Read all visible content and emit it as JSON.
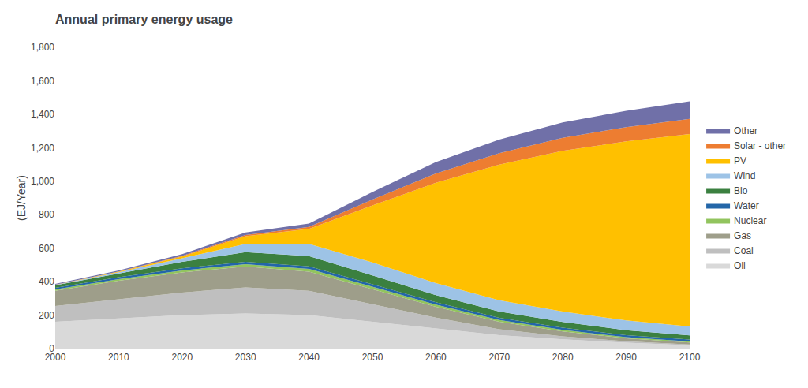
{
  "chart_data": {
    "type": "area",
    "stacked": true,
    "title": "Annual primary energy usage",
    "ylabel": "(EJ/Year)",
    "x": [
      2000,
      2010,
      2020,
      2030,
      2040,
      2050,
      2060,
      2070,
      2080,
      2090,
      2100
    ],
    "xlim": [
      2000,
      2100
    ],
    "xticks": [
      2000,
      2010,
      2020,
      2030,
      2040,
      2050,
      2060,
      2070,
      2080,
      2090,
      2100
    ],
    "ylim": [
      0,
      1800
    ],
    "yticks": [
      0,
      200,
      400,
      600,
      800,
      {
        "value": 1000,
        "label": "1,000"
      },
      {
        "value": 1200,
        "label": "1,200"
      },
      {
        "value": 1400,
        "label": "1,400"
      },
      {
        "value": 1600,
        "label": "1,600"
      },
      {
        "value": 1800,
        "label": "1,800"
      }
    ],
    "grid": false,
    "legend": "right",
    "series": [
      {
        "name": "Oil",
        "color": "#d9d9d9",
        "values": [
          160,
          180,
          200,
          210,
          200,
          160,
          120,
          80,
          55,
          35,
          20
        ]
      },
      {
        "name": "Coal",
        "color": "#bfbfbf",
        "values": [
          95,
          115,
          135,
          155,
          145,
          105,
          65,
          35,
          18,
          8,
          5
        ]
      },
      {
        "name": "Gas",
        "color": "#9e9e8a",
        "values": [
          90,
          110,
          120,
          125,
          115,
          90,
          65,
          45,
          30,
          18,
          12
        ]
      },
      {
        "name": "Nuclear",
        "color": "#92c45e",
        "values": [
          8,
          10,
          12,
          14,
          16,
          15,
          13,
          11,
          9,
          7,
          5
        ]
      },
      {
        "name": "Water",
        "color": "#2366a8",
        "values": [
          10,
          11,
          13,
          14,
          15,
          15,
          14,
          13,
          13,
          12,
          12
        ]
      },
      {
        "name": "Bio",
        "color": "#3b8040",
        "values": [
          15,
          22,
          38,
          58,
          62,
          52,
          42,
          38,
          34,
          30,
          25
        ]
      },
      {
        "name": "Wind",
        "color": "#9dc3e6",
        "values": [
          2,
          8,
          22,
          50,
          72,
          78,
          72,
          67,
          62,
          58,
          53
        ]
      },
      {
        "name": "PV",
        "color": "#ffc000",
        "values": [
          1,
          3,
          10,
          45,
          90,
          340,
          600,
          810,
          960,
          1070,
          1150
        ]
      },
      {
        "name": "Solar - other",
        "color": "#ed7d31",
        "values": [
          1,
          2,
          4,
          8,
          12,
          35,
          55,
          68,
          78,
          85,
          90
        ]
      },
      {
        "name": "Other",
        "color": "#7070a8",
        "values": [
          4,
          6,
          10,
          15,
          20,
          45,
          68,
          82,
          92,
          98,
          105
        ]
      }
    ]
  }
}
